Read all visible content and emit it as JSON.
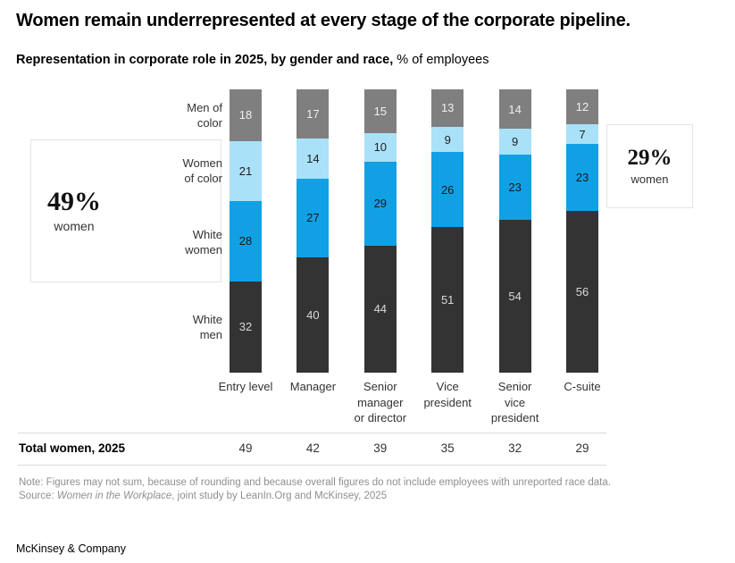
{
  "chart_data": {
    "type": "bar",
    "stacked": true,
    "normalized_percent": true,
    "title": "Women remain underrepresented at every stage of the corporate pipeline.",
    "subtitle_bold": "Representation in corporate role in 2025, by gender and race,",
    "subtitle_regular": " % of employees",
    "categories": [
      "Entry level",
      "Manager",
      "Senior manager or director",
      "Vice president",
      "Senior vice president",
      "C-suite"
    ],
    "category_label_lines": [
      [
        "Entry level"
      ],
      [
        "Manager"
      ],
      [
        "Senior",
        "manager",
        "or director"
      ],
      [
        "Vice",
        "president"
      ],
      [
        "Senior",
        "vice",
        "president"
      ],
      [
        "C-suite"
      ]
    ],
    "stack_order": "top-to-bottom",
    "series": [
      {
        "name": "Men of color",
        "color": "#7f7f7f",
        "label_color": "#f0f0f0",
        "values": [
          18,
          17,
          15,
          13,
          14,
          12
        ]
      },
      {
        "name": "Women of color",
        "color": "#a9e1f8",
        "label_color": "#1f1f1f",
        "values": [
          21,
          14,
          10,
          9,
          9,
          7
        ]
      },
      {
        "name": "White women",
        "color": "#12a0e4",
        "label_color": "#15191c",
        "values": [
          28,
          27,
          29,
          26,
          23,
          23
        ]
      },
      {
        "name": "White men",
        "color": "#333333",
        "label_color": "#d9d9d9",
        "values": [
          32,
          40,
          44,
          51,
          54,
          56
        ]
      }
    ],
    "totals_row": {
      "label": "Total women, 2025",
      "values": [
        49,
        42,
        39,
        35,
        32,
        29
      ]
    },
    "callouts": {
      "left": {
        "value": "49%",
        "label": "women"
      },
      "right": {
        "value": "29%",
        "label": "women"
      }
    },
    "legend_position": "left row labels",
    "axis": "none; values labeled on segments",
    "ylim": [
      0,
      100
    ]
  },
  "left_labels": [
    {
      "lines": [
        "Men of",
        "color"
      ]
    },
    {
      "lines": [
        "Women",
        "of color"
      ]
    },
    {
      "lines": [
        "White",
        "women"
      ]
    },
    {
      "lines": [
        "White",
        "men"
      ]
    }
  ],
  "note": "Note: Figures may not sum, because of rounding and because overall figures do not include employees with unreported race data.",
  "source": {
    "prefix": "Source: ",
    "italic": "Women in the Workplace",
    "suffix": ", joint study by LeanIn.Org and McKinsey, 2025"
  },
  "footer": "McKinsey & Company",
  "colors": {
    "white_men": "#333333",
    "white_women": "#12a0e4",
    "women_of_color": "#a9e1f8",
    "men_of_color": "#7f7f7f",
    "rule": "#d9d9d9",
    "callout_border": "#e3e3e3",
    "muted_text": "#8f8f8f"
  }
}
